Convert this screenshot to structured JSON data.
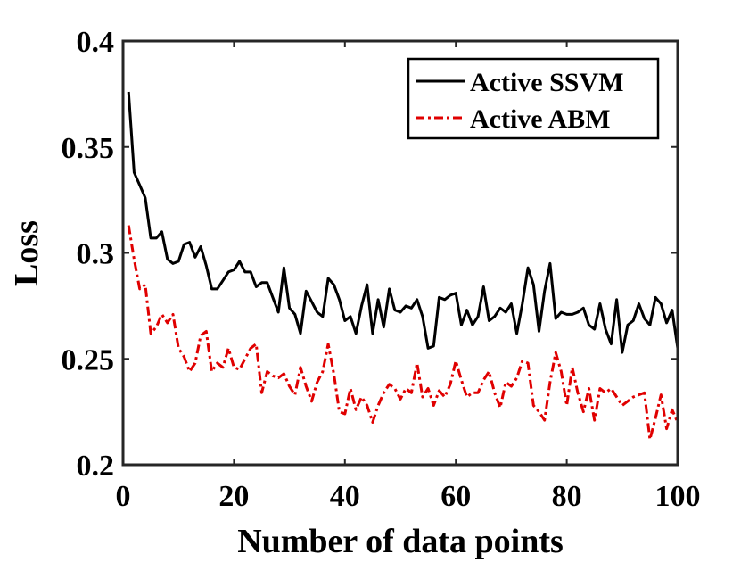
{
  "chart_data": {
    "type": "line",
    "title": "",
    "xlabel": "Number of data points",
    "ylabel": "Loss",
    "xlim": [
      0,
      100
    ],
    "ylim": [
      0.2,
      0.4
    ],
    "xticks": [
      0,
      20,
      40,
      60,
      80,
      100
    ],
    "xtick_labels": [
      "0",
      "20",
      "40",
      "60",
      "80",
      "100"
    ],
    "yticks": [
      0.2,
      0.25,
      0.3,
      0.35,
      0.4
    ],
    "ytick_labels": [
      "0.2",
      "0.25",
      "0.3",
      "0.35",
      "0.4"
    ],
    "legend_position": "top-right",
    "grid": false,
    "x": [
      1,
      2,
      3,
      4,
      5,
      6,
      7,
      8,
      9,
      10,
      11,
      12,
      13,
      14,
      15,
      16,
      17,
      18,
      19,
      20,
      21,
      22,
      23,
      24,
      25,
      26,
      27,
      28,
      29,
      30,
      31,
      32,
      33,
      34,
      35,
      36,
      37,
      38,
      39,
      40,
      41,
      42,
      43,
      44,
      45,
      46,
      47,
      48,
      49,
      50,
      51,
      52,
      53,
      54,
      55,
      56,
      57,
      58,
      59,
      60,
      61,
      62,
      63,
      64,
      65,
      66,
      67,
      68,
      69,
      70,
      71,
      72,
      73,
      74,
      75,
      76,
      77,
      78,
      79,
      80,
      81,
      82,
      83,
      84,
      85,
      86,
      87,
      88,
      89,
      90,
      91,
      92,
      93,
      94,
      95,
      96,
      97,
      98,
      99,
      100
    ],
    "series": [
      {
        "name": "Active SSVM",
        "color": "#000000",
        "style": "solid",
        "values": [
          0.376,
          0.338,
          0.332,
          0.326,
          0.307,
          0.307,
          0.31,
          0.297,
          0.295,
          0.296,
          0.304,
          0.305,
          0.298,
          0.303,
          0.294,
          0.283,
          0.283,
          0.287,
          0.291,
          0.292,
          0.296,
          0.291,
          0.291,
          0.284,
          0.286,
          0.286,
          0.279,
          0.272,
          0.293,
          0.274,
          0.271,
          0.262,
          0.282,
          0.277,
          0.272,
          0.27,
          0.288,
          0.285,
          0.278,
          0.268,
          0.27,
          0.262,
          0.275,
          0.285,
          0.262,
          0.278,
          0.265,
          0.283,
          0.273,
          0.272,
          0.275,
          0.274,
          0.278,
          0.27,
          0.255,
          0.256,
          0.279,
          0.278,
          0.28,
          0.281,
          0.266,
          0.273,
          0.266,
          0.27,
          0.284,
          0.268,
          0.27,
          0.274,
          0.272,
          0.276,
          0.262,
          0.276,
          0.293,
          0.285,
          0.263,
          0.282,
          0.295,
          0.269,
          0.272,
          0.271,
          0.271,
          0.272,
          0.274,
          0.266,
          0.264,
          0.276,
          0.264,
          0.257,
          0.278,
          0.253,
          0.266,
          0.268,
          0.276,
          0.269,
          0.266,
          0.279,
          0.276,
          0.267,
          0.273,
          0.255
        ]
      },
      {
        "name": "Active ABM",
        "color": "#e00000",
        "style": "dash-dot",
        "values": [
          0.313,
          0.297,
          0.283,
          0.285,
          0.262,
          0.265,
          0.271,
          0.267,
          0.271,
          0.255,
          0.251,
          0.244,
          0.248,
          0.261,
          0.263,
          0.244,
          0.248,
          0.246,
          0.255,
          0.246,
          0.245,
          0.25,
          0.255,
          0.257,
          0.234,
          0.244,
          0.242,
          0.241,
          0.243,
          0.237,
          0.233,
          0.246,
          0.237,
          0.23,
          0.239,
          0.244,
          0.257,
          0.243,
          0.225,
          0.224,
          0.236,
          0.226,
          0.232,
          0.228,
          0.22,
          0.228,
          0.234,
          0.238,
          0.236,
          0.231,
          0.236,
          0.234,
          0.248,
          0.232,
          0.236,
          0.228,
          0.235,
          0.232,
          0.238,
          0.249,
          0.24,
          0.232,
          0.234,
          0.234,
          0.24,
          0.244,
          0.234,
          0.227,
          0.239,
          0.237,
          0.241,
          0.249,
          0.248,
          0.228,
          0.225,
          0.221,
          0.239,
          0.253,
          0.244,
          0.228,
          0.246,
          0.234,
          0.225,
          0.236,
          0.221,
          0.236,
          0.234,
          0.236,
          0.232,
          0.228,
          0.23,
          0.232,
          0.233,
          0.234,
          0.212,
          0.222,
          0.233,
          0.217,
          0.226,
          0.22
        ]
      }
    ]
  }
}
